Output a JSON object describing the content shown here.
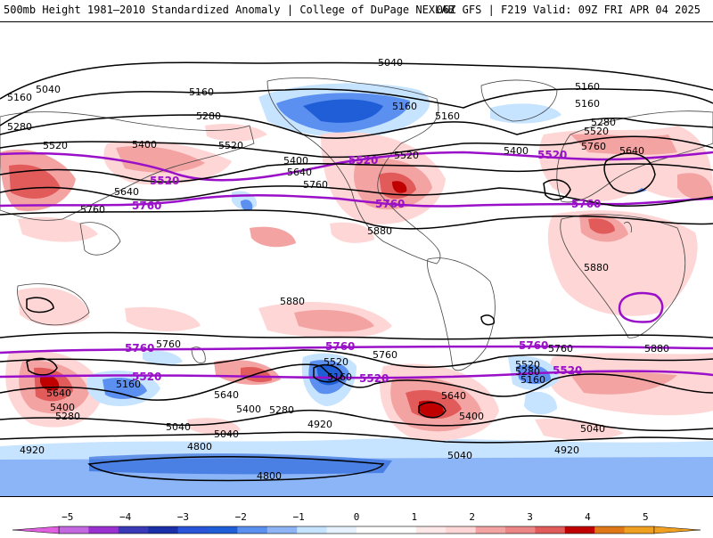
{
  "header": {
    "left_title": "500mb Height 1981–2010 Standardized Anomaly | College of DuPage NEXLAB",
    "right_title": "06Z GFS | F219 Valid: 09Z FRI APR 04 2025"
  },
  "colors": {
    "anom_neg_1": "#c6e3ff",
    "anom_neg_2": "#5b8ff0",
    "anom_neg_3": "#1f5ed6",
    "anom_neg_4": "#1b2fa8",
    "anom_neg_5": "#7a21b5",
    "anom_pos_1": "#ffd6d6",
    "anom_pos_2": "#f4a3a3",
    "anom_pos_3": "#e15b5b",
    "anom_pos_4": "#c00000",
    "anom_pos_5": "#f0a020",
    "clim_contour": "#9a10c8",
    "height_contour": "#000000",
    "coastline": "#444444"
  },
  "contour_labels": {
    "c1": "5040",
    "c2": "5160",
    "c3": "5040",
    "c4": "5160",
    "c5": "5280",
    "c6": "5520",
    "c7": "5400",
    "c8": "5520",
    "c9": "5400",
    "c10": "5640",
    "c11": "5760",
    "c12": "5880",
    "c13": "5160",
    "c14": "5280",
    "c15": "5400",
    "c16": "5520",
    "c17": "5640",
    "c18": "5760",
    "c19": "5160",
    "c20": "5160",
    "c21": "5280",
    "c22": "5520",
    "c23": "5760",
    "c24": "5640",
    "c25": "5160",
    "c26": "5880",
    "c27": "5880",
    "c28": "5760",
    "c29": "5760",
    "c30": "5880",
    "c31": "5760",
    "c32": "5160",
    "c33": "5640",
    "c34": "5400",
    "c35": "5280",
    "c36": "5040",
    "c37": "4920",
    "c38": "4800",
    "c39": "4800",
    "c40": "5520",
    "c41": "5160",
    "c42": "4920",
    "c43": "5640",
    "c44": "5400",
    "c45": "5040",
    "c46": "5520",
    "c47": "5280",
    "c48": "5160",
    "c49": "5040",
    "c50": "4920",
    "c51": "5640",
    "c52": "5400",
    "c53": "5280",
    "c54": "5040"
  },
  "clim_labels": {
    "p1": "5520",
    "p2": "5520",
    "p3": "5520",
    "p4": "5760",
    "p5": "5760",
    "p6": "5760",
    "p7": "5760",
    "p8": "5760",
    "p9": "5760",
    "p10": "5520",
    "p11": "5520",
    "p12": "5520"
  },
  "colorbar": {
    "ticks": [
      "−5",
      "−4",
      "−3",
      "−2",
      "−1",
      "0",
      "1",
      "2",
      "3",
      "4",
      "5"
    ],
    "levels": [
      -5,
      -4,
      -3,
      -2,
      -1,
      0,
      1,
      2,
      3,
      4,
      5
    ]
  }
}
